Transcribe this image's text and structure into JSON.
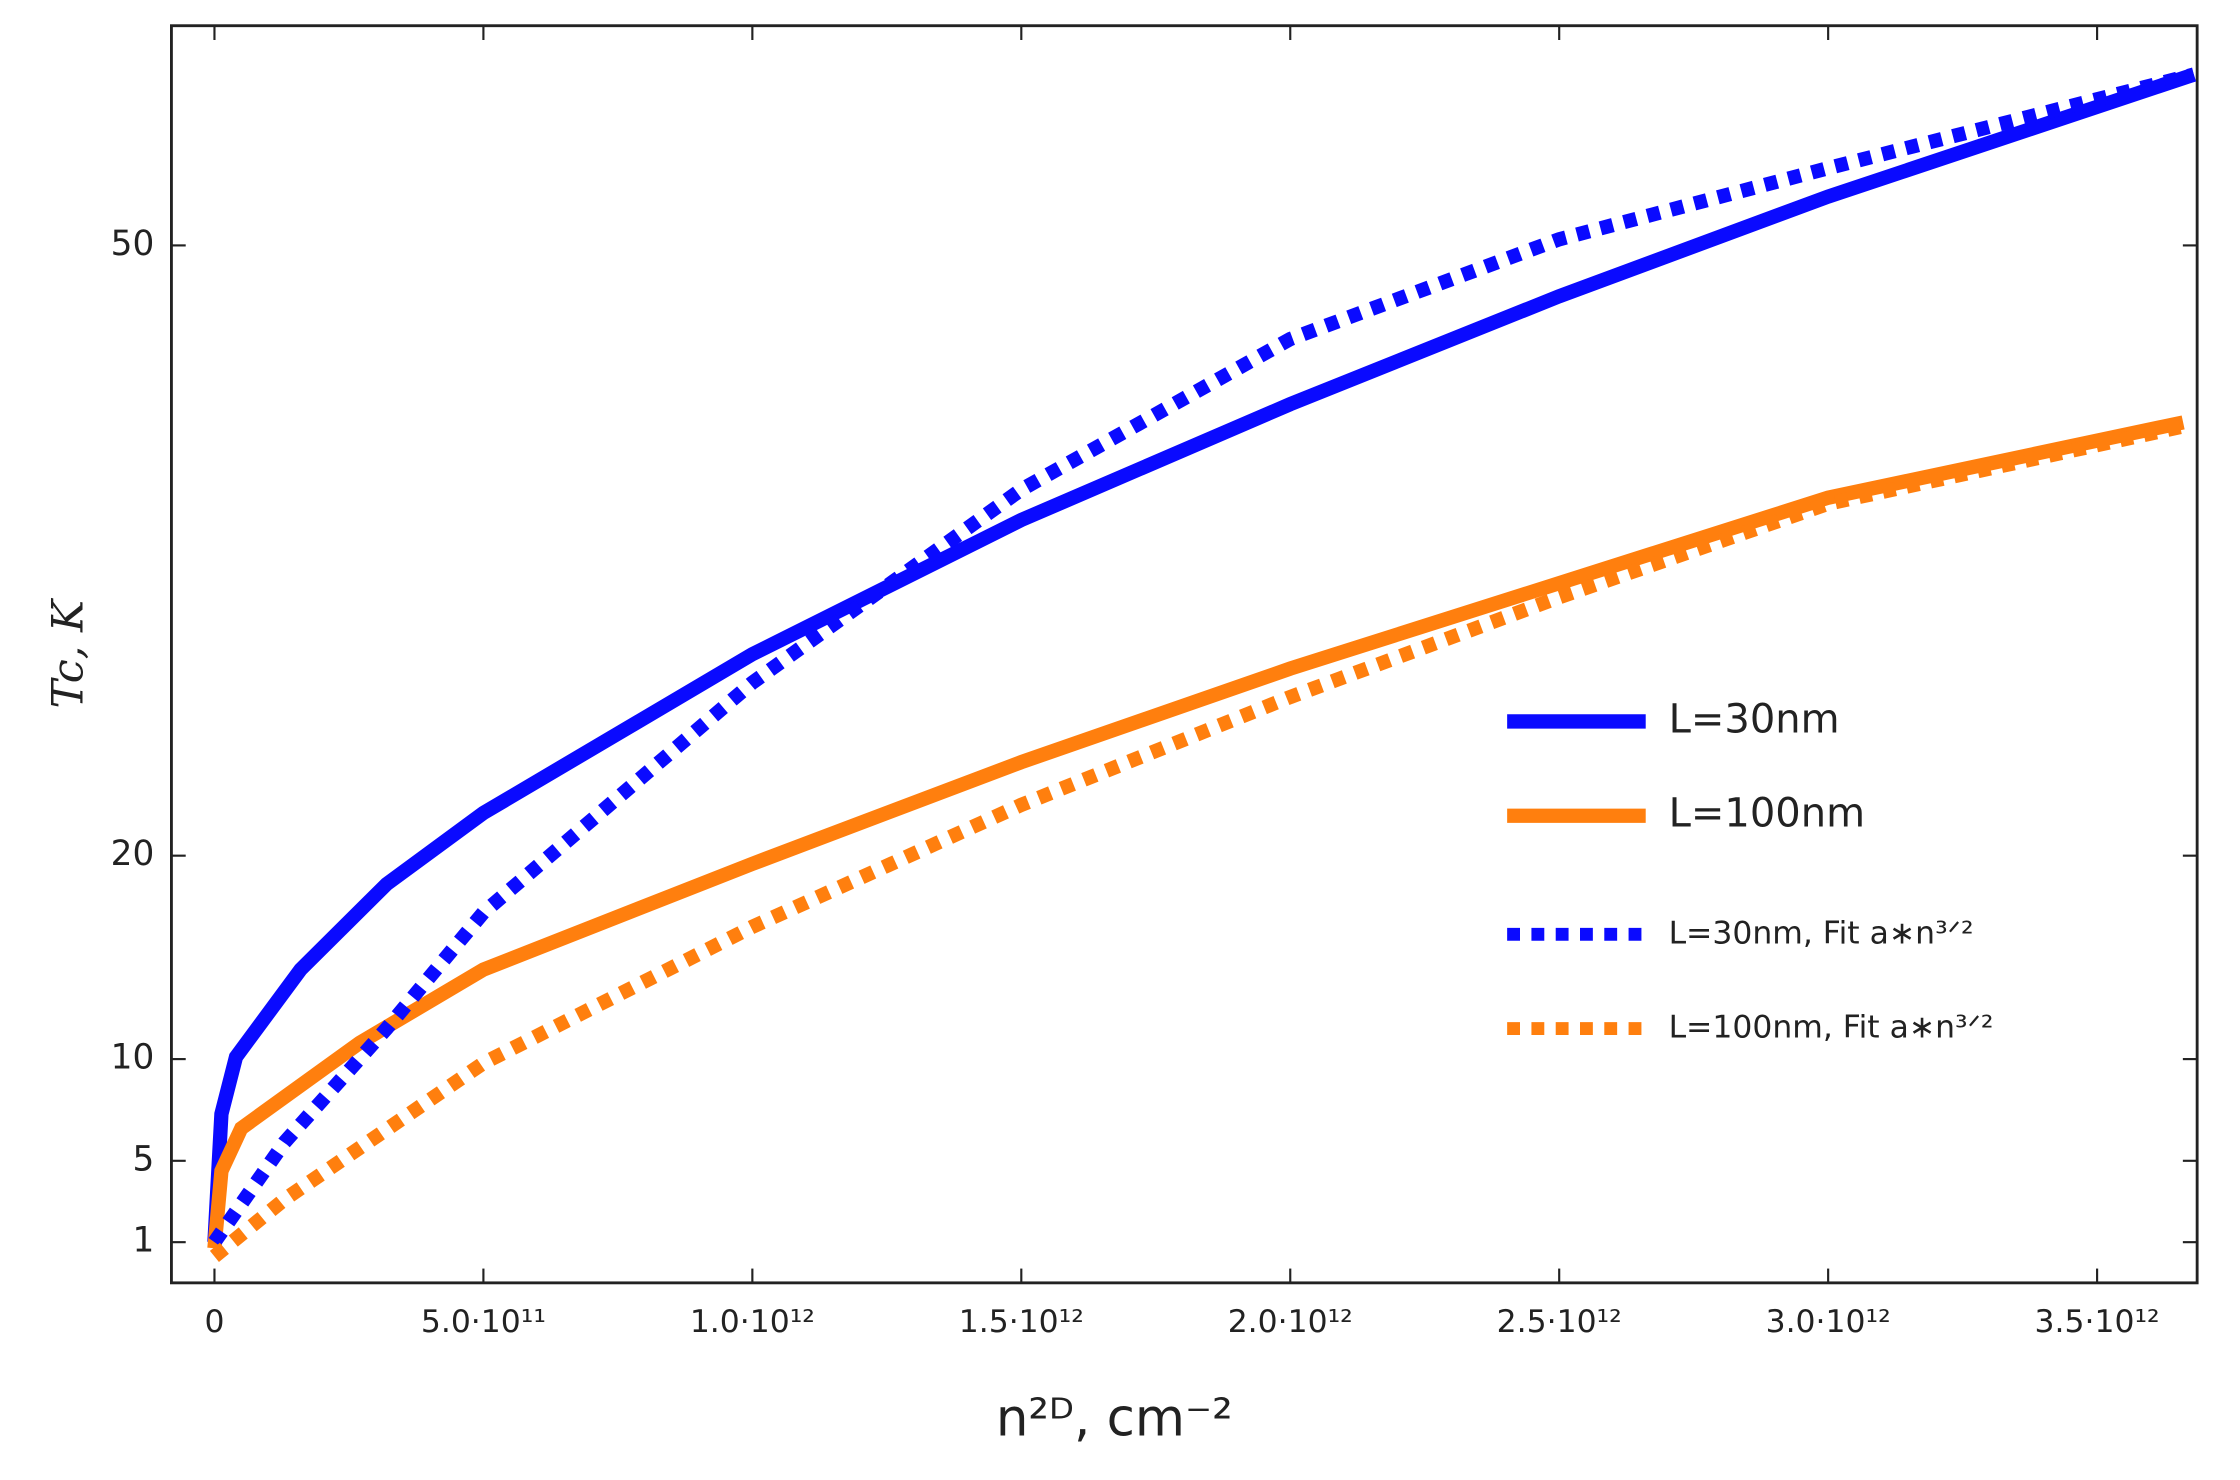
{
  "chart_data": {
    "type": "line",
    "x_label": "n²ᴰ, cm⁻²",
    "y_label": "Tc, K",
    "xlim": [
      -80000000000,
      3686000000000
    ],
    "ylim": [
      -1,
      60.8
    ],
    "xticks": [
      0,
      {
        "value": 500000000000,
        "label": "5.0·10¹¹"
      },
      {
        "value": 1000000000000,
        "label": "1.0·10¹²"
      },
      {
        "value": 1500000000000,
        "label": "1.5·10¹²"
      },
      {
        "value": 2000000000000,
        "label": "2.0·10¹²"
      },
      {
        "value": 2500000000000,
        "label": "2.5·10¹²"
      },
      {
        "value": 3000000000000,
        "label": "3.0·10¹²"
      },
      {
        "value": 3500000000000,
        "label": "3.5·10¹²"
      }
    ],
    "yticks": [
      1,
      5,
      10,
      20,
      50
    ],
    "grid": false,
    "series": [
      {
        "name": "L=30nm",
        "color": "#0a0aff",
        "style": "solid",
        "x": [
          0,
          13000000000,
          40000000000,
          160000000000,
          320000000000,
          500000000000,
          1000000000000,
          1500000000000,
          2000000000000,
          2500000000000,
          3000000000000,
          3680000000000
        ],
        "values": [
          1,
          7.3,
          10.1,
          14.4,
          18.6,
          22.1,
          29.9,
          36.5,
          42.2,
          47.5,
          52.4,
          58.4
        ]
      },
      {
        "name": "L=100nm",
        "color": "#ff7f0e",
        "style": "solid",
        "x": [
          0,
          13000000000,
          50000000000,
          270000000000,
          500000000000,
          1000000000000,
          1500000000000,
          2000000000000,
          2500000000000,
          3000000000000,
          3660000000000
        ],
        "values": [
          0.7,
          4.5,
          6.6,
          10.8,
          14.4,
          19.6,
          24.6,
          29.2,
          33.4,
          37.6,
          41.3
        ]
      },
      {
        "name": "L=30nm, Fit a∗n³ᐟ²",
        "color": "#0a0aff",
        "style": "dotted",
        "x": [
          0,
          130000000000,
          320000000000,
          500000000000,
          1000000000000,
          1500000000000,
          2000000000000,
          2500000000000,
          3000000000000,
          3680000000000
        ],
        "values": [
          1,
          5.9,
          11.5,
          17.2,
          28.5,
          38,
          45.4,
          50.3,
          53.8,
          58.4
        ]
      },
      {
        "name": "L=100nm, Fit a∗n³ᐟ²",
        "color": "#ff7f0e",
        "style": "dotted",
        "x": [
          0,
          130000000000,
          500000000000,
          1000000000000,
          1500000000000,
          2000000000000,
          2500000000000,
          3000000000000,
          3660000000000
        ],
        "values": [
          0.3,
          3.1,
          9.8,
          16.5,
          22.5,
          27.8,
          32.7,
          37.3,
          41.1
        ]
      }
    ]
  }
}
